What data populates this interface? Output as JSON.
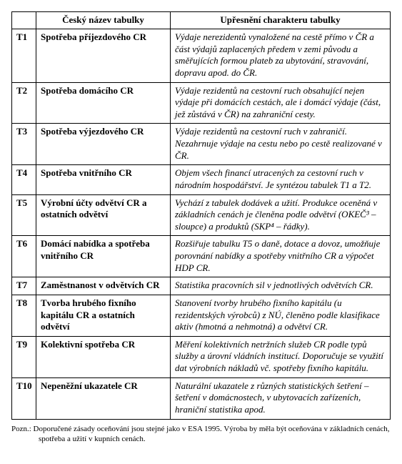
{
  "table": {
    "headers": {
      "id": "",
      "name": "Český název tabulky",
      "desc": "Upřesnění charakteru tabulky"
    },
    "rows": [
      {
        "id": "T1",
        "name": "Spotřeba příjezdového CR",
        "desc": "Výdaje nerezidentů vynaložené na cestě přímo v ČR a část výdajů zaplacených předem v zemi původu a směřujících formou plateb za ubytování, stravování, dopravu apod. do ČR."
      },
      {
        "id": "T2",
        "name": "Spotřeba domácího CR",
        "desc": "Výdaje rezidentů na cestovní ruch obsahující nejen výdaje při domácích cestách, ale i domácí výdaje (část, jež zůstává v ČR) na zahraniční cesty."
      },
      {
        "id": "T3",
        "name": "Spotřeba výjezdového CR",
        "desc": "Výdaje rezidentů na cestovní ruch v zahraničí. Nezahrnuje výdaje na cestu nebo po cestě realizované v ČR."
      },
      {
        "id": "T4",
        "name": "Spotřeba vnitřního CR",
        "desc": "Objem všech financí utracených za cestovní ruch v národním hospodářství. Je syntézou tabulek T1 a T2."
      },
      {
        "id": "T5",
        "name": "Výrobní účty odvětví CR a ostatních odvětví",
        "desc": "Vychází z tabulek dodávek a užití. Produkce oceněná v základních cenách je členěna podle odvětví (OKEČ³ – sloupce) a produktů (SKP⁴ – řádky)."
      },
      {
        "id": "T6",
        "name": "Domácí nabídka a spotřeba vnitřního CR",
        "desc": "Rozšiřuje tabulku T5 o daně, dotace a dovoz, umožňuje porovnání nabídky a spotřeby vnitřního CR a výpočet HDP CR."
      },
      {
        "id": "T7",
        "name": "Zaměstnanost v odvětvích CR",
        "desc": "Statistika pracovních sil v jednotlivých odvětvích CR."
      },
      {
        "id": "T8",
        "name": "Tvorba hrubého fixního kapitálu CR a ostatních odvětví",
        "desc": "Stanovení tvorby hrubého fixního kapitálu (u rezidentských výrobců) z NÚ, členěno podle klasifikace aktiv (hmotná a nehmotná) a odvětví CR."
      },
      {
        "id": "T9",
        "name": "Kolektivní spotřeba CR",
        "desc": "Měření kolektivních netržních služeb CR podle typů služby a úrovní vládních institucí. Doporučuje se využití dat výrobních nákladů vč. spotřeby fixního kapitálu."
      },
      {
        "id": "T10",
        "name": "Nepeněžní ukazatele CR",
        "desc": "Naturální ukazatele z různých statistických šetření – šetření v domácnostech, v ubytovacích zařízeních, hraniční statistika apod."
      }
    ]
  },
  "footnote": "Pozn.: Doporučené zásady oceňování jsou stejné jako v ESA 1995. Výroba by měla být oceňována v základních cenách, spotřeba a užití v kupních cenách."
}
